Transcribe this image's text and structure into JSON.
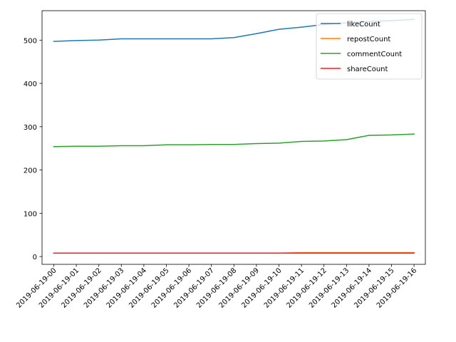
{
  "chart_data": {
    "type": "line",
    "title": "",
    "xlabel": "",
    "ylabel": "",
    "categories": [
      "2019-06-19-00",
      "2019-06-19-01",
      "2019-06-19-02",
      "2019-06-19-03",
      "2019-06-19-04",
      "2019-06-19-05",
      "2019-06-19-06",
      "2019-06-19-07",
      "2019-06-19-08",
      "2019-06-19-09",
      "2019-06-19-10",
      "2019-06-19-11",
      "2019-06-19-12",
      "2019-06-19-13",
      "2019-06-19-14",
      "2019-06-19-15",
      "2019-06-19-16"
    ],
    "yticks": [
      0,
      100,
      200,
      300,
      400,
      500
    ],
    "ylim": [
      -18,
      568
    ],
    "grid": false,
    "legend_position": "top-right",
    "series": [
      {
        "name": "likeCount",
        "color": "#1f77b4",
        "values": [
          497,
          499,
          500,
          503,
          503,
          503,
          503,
          503,
          506,
          515,
          525,
          530,
          536,
          540,
          543,
          545,
          548
        ]
      },
      {
        "name": "repostCount",
        "color": "#ff7f0e",
        "values": [
          8,
          8,
          8,
          8,
          8,
          8,
          8,
          8,
          8,
          8,
          8,
          9,
          9,
          9,
          9,
          9,
          9
        ]
      },
      {
        "name": "commentCount",
        "color": "#2ca02c",
        "values": [
          254,
          255,
          255,
          256,
          256,
          258,
          258,
          259,
          259,
          261,
          262,
          266,
          267,
          270,
          280,
          281,
          283
        ]
      },
      {
        "name": "shareCount",
        "color": "#d62728",
        "values": [
          8,
          8,
          8,
          8,
          8,
          8,
          8,
          8,
          8,
          8,
          8,
          8,
          8,
          8,
          8,
          8,
          8
        ]
      }
    ]
  }
}
